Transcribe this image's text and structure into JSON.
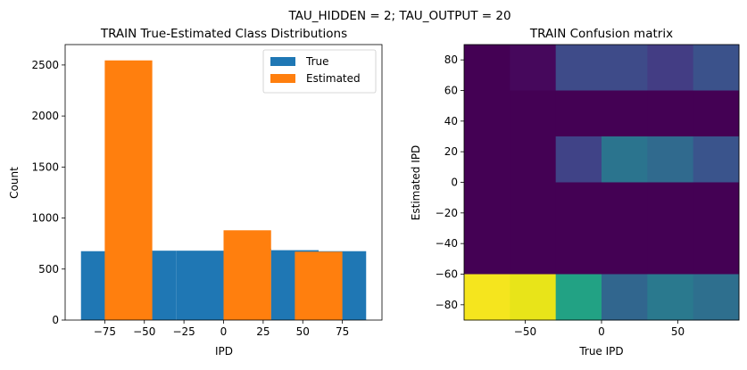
{
  "figure_title": "TAU_HIDDEN = 2; TAU_OUTPUT = 20",
  "colors": {
    "true": "#1f77b4",
    "estimated": "#ff7f0e"
  },
  "chart_data": [
    {
      "type": "bar",
      "title": "TRAIN True-Estimated Class Distributions",
      "xlabel": "IPD",
      "ylabel": "Count",
      "xlim": [
        -100,
        100
      ],
      "ylim": [
        0,
        2700
      ],
      "xticks": [
        -75,
        -50,
        -25,
        0,
        25,
        50,
        75
      ],
      "xtick_labels": [
        "−75",
        "−50",
        "−25",
        "0",
        "25",
        "50",
        "75"
      ],
      "yticks": [
        0,
        500,
        1000,
        1500,
        2000,
        2500
      ],
      "ytick_labels": [
        "0",
        "500",
        "1000",
        "1500",
        "2000",
        "2500"
      ],
      "legend": {
        "placement": "top-right",
        "entries": [
          "True",
          "Estimated"
        ]
      },
      "series": [
        {
          "name": "True",
          "bars": [
            {
              "x0": -90,
              "x1": -60,
              "value": 675
            },
            {
              "x0": -60,
              "x1": -30,
              "value": 680
            },
            {
              "x0": -30,
              "x1": 0,
              "value": 680
            },
            {
              "x0": 0,
              "x1": 30,
              "value": 700
            },
            {
              "x0": 30,
              "x1": 60,
              "value": 685
            },
            {
              "x0": 60,
              "x1": 90,
              "value": 675
            }
          ]
        },
        {
          "name": "Estimated",
          "bars": [
            {
              "x0": -75,
              "x1": -45,
              "value": 2545
            },
            {
              "x0": 0,
              "x1": 30,
              "value": 880
            },
            {
              "x0": 45,
              "x1": 75,
              "value": 670
            }
          ]
        }
      ]
    },
    {
      "type": "heatmap",
      "title": "TRAIN Confusion matrix",
      "xlabel": "True IPD",
      "ylabel": "Estimated IPD",
      "xlim": [
        -90,
        90
      ],
      "ylim": [
        -90,
        90
      ],
      "xticks": [
        -50,
        0,
        50
      ],
      "xtick_labels": [
        "−50",
        "0",
        "50"
      ],
      "yticks": [
        -80,
        -60,
        -40,
        -20,
        0,
        20,
        40,
        60,
        80
      ],
      "ytick_labels": [
        "−80",
        "−60",
        "−40",
        "−20",
        "0",
        "20",
        "40",
        "60",
        "80"
      ],
      "x_edges": [
        -90,
        -60,
        -30,
        0,
        30,
        60,
        90
      ],
      "y_edges": [
        -90,
        -60,
        0,
        30,
        60,
        90
      ],
      "rows": [
        {
          "y_range": [
            60,
            90
          ],
          "colors": [
            "#440154",
            "#46085c",
            "#3e4b89",
            "#3e4b89",
            "#433d84",
            "#3b528b"
          ]
        },
        {
          "y_range": [
            30,
            60
          ],
          "colors": [
            "#440154",
            "#440154",
            "#440154",
            "#440154",
            "#440154",
            "#440154"
          ]
        },
        {
          "y_range": [
            0,
            30
          ],
          "colors": [
            "#440154",
            "#440154",
            "#404387",
            "#2b748e",
            "#306a8e",
            "#3a548c"
          ]
        },
        {
          "y_range": [
            -60,
            0
          ],
          "colors": [
            "#440154",
            "#440154",
            "#440154",
            "#440154",
            "#440154",
            "#440154"
          ]
        },
        {
          "y_range": [
            -90,
            -60
          ],
          "colors": [
            "#f5e51e",
            "#e8e419",
            "#22a284",
            "#31668e",
            "#2a798e",
            "#2e6f8e"
          ]
        }
      ]
    }
  ]
}
